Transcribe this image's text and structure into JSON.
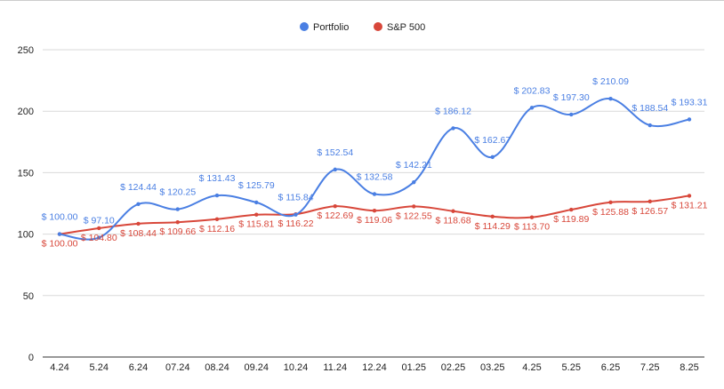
{
  "chart_data": {
    "type": "line",
    "title": "",
    "xlabel": "",
    "ylabel": "",
    "categories": [
      "4.24",
      "5.24",
      "6.24",
      "07.24",
      "08.24",
      "09.24",
      "10.24",
      "11.24",
      "12.24",
      "01.25",
      "02.25",
      "03.25",
      "4.25",
      "5.25",
      "6.25",
      "7.25",
      "8.25"
    ],
    "ylim": [
      0,
      250
    ],
    "yticks": [
      0,
      50,
      100,
      150,
      200,
      250
    ],
    "grid": true,
    "legend_position": "top",
    "series": [
      {
        "name": "Portfolio",
        "color": "#4a7fe3",
        "values": [
          100.0,
          97.1,
          124.44,
          120.25,
          131.43,
          125.79,
          115.84,
          152.54,
          132.58,
          142.21,
          186.12,
          162.67,
          202.83,
          197.3,
          210.09,
          188.54,
          193.31
        ],
        "labels": [
          "$ 100.00",
          "$ 97.10",
          "$ 124.44",
          "$ 120.25",
          "$ 131.43",
          "$ 125.79",
          "$ 115.84",
          "$ 152.54",
          "$ 132.58",
          "$ 142.21",
          "$ 186.12",
          "$ 162.67",
          "$ 202.83",
          "$ 197.30",
          "$ 210.09",
          "$ 188.54",
          "$ 193.31"
        ]
      },
      {
        "name": "S&P 500",
        "color": "#d8473a",
        "values": [
          100.0,
          104.8,
          108.44,
          109.66,
          112.16,
          115.81,
          116.22,
          122.69,
          119.06,
          122.55,
          118.68,
          114.29,
          113.7,
          119.89,
          125.88,
          126.57,
          131.21
        ],
        "labels": [
          "$ 100.00",
          "$ 104.80",
          "$ 108.44",
          "$ 109.66",
          "$ 112.16",
          "$ 115.81",
          "$ 116.22",
          "$ 122.69",
          "$ 119.06",
          "$ 122.55",
          "$ 118.68",
          "$ 114.29",
          "$ 113.70",
          "$ 119.89",
          "$ 125.88",
          "$ 126.57",
          "$ 131.21"
        ]
      }
    ]
  }
}
